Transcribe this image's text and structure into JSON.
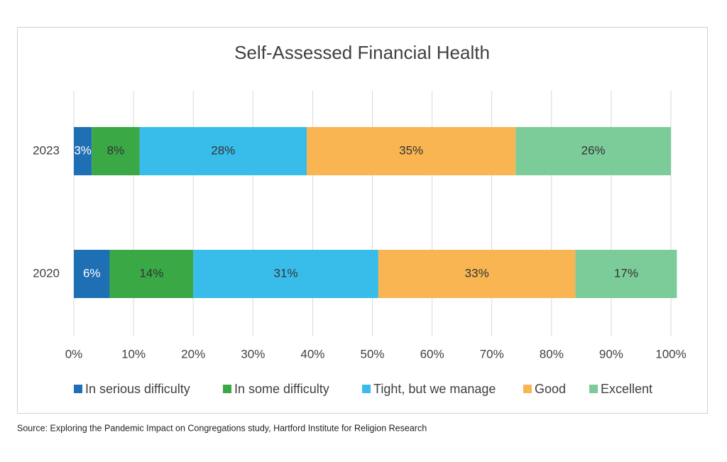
{
  "chart_data": {
    "type": "stacked-bar-horizontal",
    "title": "Self-Assessed Financial Health",
    "categories": [
      "2023",
      "2020"
    ],
    "series": [
      {
        "name": "In serious difficulty",
        "color": "#1f6fb5",
        "values": [
          3,
          6
        ],
        "value_labels": [
          "3%",
          "6%"
        ]
      },
      {
        "name": "In some difficulty",
        "color": "#3aa845",
        "values": [
          8,
          14
        ],
        "value_labels": [
          "8%",
          "14%"
        ]
      },
      {
        "name": "Tight, but we manage",
        "color": "#38bdeb",
        "values": [
          28,
          31
        ],
        "value_labels": [
          "28%",
          "31%"
        ]
      },
      {
        "name": "Good",
        "color": "#f8b551",
        "values": [
          35,
          33
        ],
        "value_labels": [
          "35%",
          "33%"
        ]
      },
      {
        "name": "Excellent",
        "color": "#7ccc9a",
        "values": [
          26,
          17
        ],
        "value_labels": [
          "26%",
          "17%"
        ]
      }
    ],
    "xlim": [
      0,
      100
    ],
    "xticks": [
      {
        "value": 0,
        "label": "0%"
      },
      {
        "value": 10,
        "label": "10%"
      },
      {
        "value": 20,
        "label": "20%"
      },
      {
        "value": 30,
        "label": "30%"
      },
      {
        "value": 40,
        "label": "40%"
      },
      {
        "value": 50,
        "label": "50%"
      },
      {
        "value": 60,
        "label": "60%"
      },
      {
        "value": 70,
        "label": "70%"
      },
      {
        "value": 80,
        "label": "80%"
      },
      {
        "value": 90,
        "label": "90%"
      },
      {
        "value": 100,
        "label": "100%"
      }
    ],
    "grid": true,
    "legend": "bottom",
    "source": "Source: Exploring the Pandemic Impact on Congregations study, Hartford Institute for Religion Research"
  }
}
